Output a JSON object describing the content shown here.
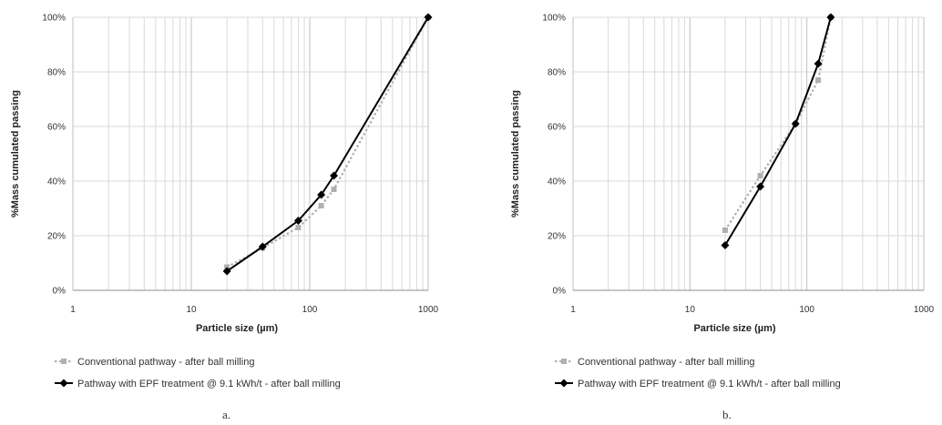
{
  "chart_data": [
    {
      "type": "line",
      "panel_label": "a.",
      "xlabel": "Particle size (µm)",
      "ylabel": "%Mass cumulated passing",
      "xscale": "log",
      "xlim": [
        1,
        1000
      ],
      "ylim": [
        0,
        100
      ],
      "x_ticks": [
        "1",
        "10",
        "100",
        "1000"
      ],
      "y_ticks": [
        "0%",
        "20%",
        "40%",
        "60%",
        "80%",
        "100%"
      ],
      "grid": true,
      "legend_position": "bottom",
      "series": [
        {
          "name": "Conventional pathway - after ball milling",
          "style": "dashed",
          "color": "#b0b0b0",
          "marker": "square",
          "x": [
            20,
            40,
            80,
            125,
            160,
            1000
          ],
          "y": [
            8.5,
            15.5,
            23,
            31,
            37,
            100
          ]
        },
        {
          "name": "Pathway with EPF treatment @ 9.1 kWh/t - after ball milling",
          "style": "solid",
          "color": "#000000",
          "marker": "diamond",
          "x": [
            20,
            40,
            80,
            125,
            160,
            1000
          ],
          "y": [
            7,
            16,
            25.5,
            35,
            42,
            100
          ]
        }
      ]
    },
    {
      "type": "line",
      "panel_label": "b.",
      "xlabel": "Particle size (µm)",
      "ylabel": "%Mass cumulated passing",
      "xscale": "log",
      "xlim": [
        1,
        1000
      ],
      "ylim": [
        0,
        100
      ],
      "x_ticks": [
        "1",
        "10",
        "100",
        "1000"
      ],
      "y_ticks": [
        "0%",
        "20%",
        "40%",
        "60%",
        "80%",
        "100%"
      ],
      "grid": true,
      "legend_position": "bottom",
      "series": [
        {
          "name": "Conventional pathway - after ball milling",
          "style": "dashed",
          "color": "#b0b0b0",
          "marker": "square",
          "x": [
            20,
            40,
            80,
            125,
            160
          ],
          "y": [
            22,
            42,
            61,
            77,
            100
          ]
        },
        {
          "name": "Pathway with EPF treatment @ 9.1 kWh/t - after ball milling",
          "style": "solid",
          "color": "#000000",
          "marker": "diamond",
          "x": [
            20,
            40,
            80,
            125,
            160
          ],
          "y": [
            16.5,
            38,
            61,
            83,
            100
          ]
        }
      ]
    }
  ]
}
